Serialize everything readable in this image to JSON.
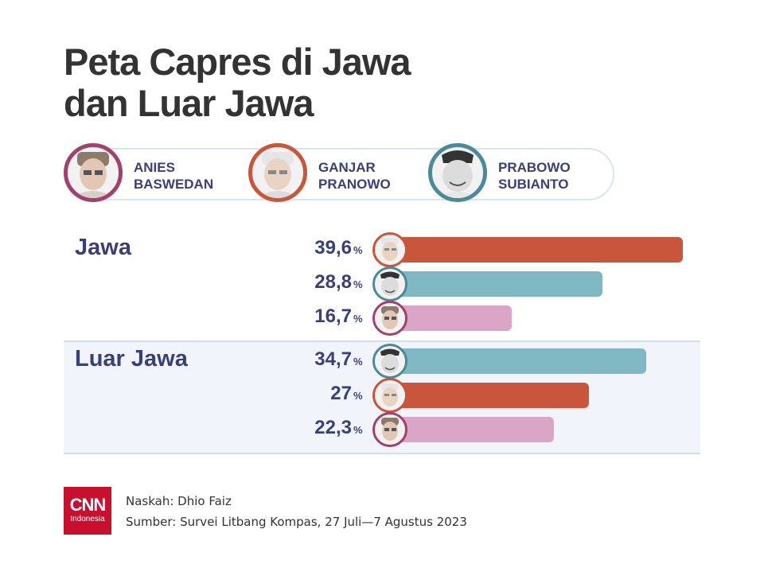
{
  "title": {
    "line1": "Peta Capres di Jawa",
    "line2": "dan Luar Jawa"
  },
  "legend": [
    {
      "first": "ANIES",
      "last": "BASWEDAN",
      "color": "#a2416a",
      "icon": "anies-portrait-icon"
    },
    {
      "first": "GANJAR",
      "last": "PRANOWO",
      "color": "#c9553a",
      "icon": "ganjar-portrait-icon"
    },
    {
      "first": "PRABOWO",
      "last": "SUBIANTO",
      "color": "#4b8a99",
      "icon": "prabowo-portrait-icon"
    }
  ],
  "colors": {
    "anies_bar": "#dba6c6",
    "ganjar_bar": "#c9553a",
    "prabowo_bar": "#7fb8c2",
    "text_navy": "#3a3f7a",
    "brand_red": "#c8102e"
  },
  "chart_data": {
    "type": "bar",
    "orientation": "horizontal",
    "unit": "%",
    "xlim": [
      0,
      40
    ],
    "groups": [
      {
        "name": "Jawa",
        "bars": [
          {
            "candidate": "ganjar",
            "value": 39.6,
            "label": "39,6"
          },
          {
            "candidate": "prabowo",
            "value": 28.8,
            "label": "28,8"
          },
          {
            "candidate": "anies",
            "value": 16.7,
            "label": "16,7"
          }
        ]
      },
      {
        "name": "Luar Jawa",
        "bars": [
          {
            "candidate": "prabowo",
            "value": 34.7,
            "label": "34,7"
          },
          {
            "candidate": "ganjar",
            "value": 27,
            "label": "27"
          },
          {
            "candidate": "anies",
            "value": 22.3,
            "label": "22,3"
          }
        ]
      }
    ]
  },
  "footer": {
    "logo_main": "CNN",
    "logo_sub": "Indonesia",
    "naskah": "Naskah: Dhio Faiz",
    "sumber": "Sumber: Survei Litbang Kompas, 27 Juli—7 Agustus 2023"
  }
}
